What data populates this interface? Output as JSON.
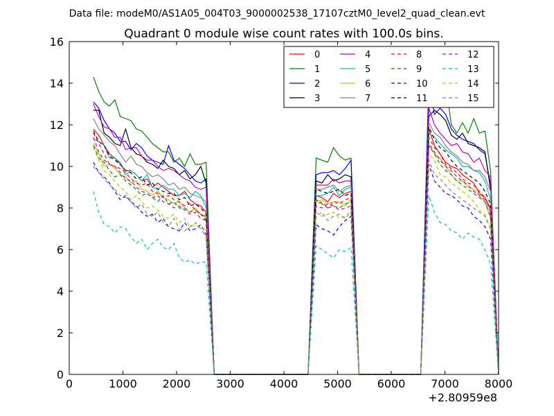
{
  "header": {
    "suptitle": "Data file: modeM0/AS1A05_004T03_9000002538_17107cztM0_level2_quad_clean.evt"
  },
  "chart_data": {
    "type": "line",
    "title": "Quadrant 0 module wise count rates with 100.0s bins.",
    "xlabel": "",
    "ylabel": "",
    "x_offset_label": "+2.80959e8",
    "xlim": [
      0,
      8000
    ],
    "ylim": [
      0,
      16
    ],
    "x_ticks": [
      0,
      1000,
      2000,
      3000,
      4000,
      5000,
      6000,
      7000,
      8000
    ],
    "y_ticks": [
      0,
      2,
      4,
      6,
      8,
      10,
      12,
      14,
      16
    ],
    "grid": false,
    "legend_position": "top-right",
    "legend_columns": 4,
    "segments": [
      {
        "x_start": 450,
        "x_end": 2550
      },
      {
        "x_start": 4600,
        "x_end": 5250
      },
      {
        "x_start": 6700,
        "x_end": 7850
      }
    ],
    "series": [
      {
        "name": "0",
        "color": "#ff0000",
        "dash": "solid",
        "values": [
          [
            11.8,
            11.5,
            11.0,
            10.6,
            10.4,
            10.1,
            9.8,
            9.8,
            9.6,
            9.3,
            9.4,
            9.0,
            9.2,
            9.0,
            8.8,
            8.6,
            8.6,
            8.8,
            8.4,
            8.2,
            8.1,
            7.8
          ],
          [
            8.6,
            8.5,
            8.3,
            8.7,
            8.5,
            8.7,
            8.8
          ],
          [
            11.8,
            11.0,
            10.6,
            10.2,
            10.0,
            9.9,
            9.6,
            9.4,
            9.2,
            8.7,
            8.5,
            8.0
          ]
        ]
      },
      {
        "name": "1",
        "color": "#008000",
        "dash": "solid",
        "values": [
          [
            14.3,
            13.6,
            13.1,
            12.9,
            13.2,
            12.4,
            12.3,
            12.2,
            11.8,
            11.7,
            11.4,
            11.1,
            10.9,
            10.7,
            10.7,
            10.2,
            10.4,
            10.0,
            10.6,
            10.1,
            10.1,
            10.2
          ],
          [
            10.4,
            10.3,
            10.2,
            10.9,
            10.5,
            10.3,
            10.4
          ],
          [
            14.2,
            13.7,
            13.9,
            14.0,
            12.0,
            11.6,
            12.1,
            11.6,
            12.3,
            11.6,
            11.7,
            9.8
          ]
        ]
      },
      {
        "name": "2",
        "color": "#0000ff",
        "dash": "solid",
        "values": [
          [
            13.1,
            12.8,
            12.2,
            11.8,
            11.6,
            11.2,
            11.2,
            10.8,
            11.1,
            10.9,
            10.5,
            10.3,
            10.2,
            10.1,
            11.0,
            10.3,
            10.1,
            9.9,
            9.6,
            9.3,
            9.2,
            9.4
          ],
          [
            9.6,
            9.7,
            9.7,
            9.8,
            9.6,
            9.9,
            10.3
          ],
          [
            13.9,
            12.5,
            12.8,
            12.5,
            11.8,
            11.5,
            11.3,
            11.2,
            11.1,
            10.8,
            10.6,
            9.1
          ]
        ]
      },
      {
        "name": "3",
        "color": "#000000",
        "dash": "solid",
        "values": [
          [
            12.7,
            12.7,
            11.6,
            11.4,
            11.1,
            11.0,
            11.8,
            10.9,
            10.6,
            10.5,
            10.2,
            10.1,
            9.9,
            10.3,
            10.0,
            9.9,
            9.6,
            9.8,
            9.4,
            9.6,
            10.0,
            9.2
          ],
          [
            9.3,
            9.2,
            9.6,
            9.3,
            9.4,
            9.6,
            9.5
          ],
          [
            12.4,
            12.7,
            12.5,
            12.2,
            11.5,
            11.3,
            11.6,
            11.1,
            11.0,
            10.9,
            10.7,
            8.9
          ]
        ]
      },
      {
        "name": "4",
        "color": "#bf00bf",
        "dash": "solid",
        "values": [
          [
            13.0,
            12.4,
            11.9,
            11.8,
            11.4,
            11.4,
            10.8,
            10.9,
            10.9,
            10.5,
            10.3,
            10.3,
            10.0,
            9.8,
            9.9,
            9.8,
            9.6,
            9.4,
            9.3,
            9.0,
            8.9,
            9.0
          ],
          [
            9.1,
            9.1,
            9.1,
            9.4,
            9.2,
            9.3,
            9.3
          ],
          [
            12.8,
            12.0,
            11.6,
            11.3,
            11.0,
            11.1,
            10.7,
            10.6,
            10.2,
            10.4,
            9.8,
            9.5
          ]
        ]
      },
      {
        "name": "5",
        "color": "#00bfbf",
        "dash": "solid",
        "values": [
          [
            11.3,
            11.2,
            11.0,
            10.4,
            10.4,
            10.2,
            9.6,
            9.8,
            9.6,
            9.3,
            9.6,
            9.0,
            8.9,
            9.1,
            8.9,
            8.9,
            8.6,
            8.7,
            8.5,
            8.8,
            8.6,
            8.0
          ],
          [
            8.6,
            8.6,
            8.7,
            9.0,
            8.6,
            8.9,
            9.0
          ],
          [
            11.6,
            11.4,
            11.1,
            10.8,
            10.6,
            10.4,
            10.0,
            10.0,
            9.8,
            9.7,
            9.3,
            8.4
          ]
        ]
      },
      {
        "name": "6",
        "color": "#bfbf00",
        "dash": "solid",
        "values": [
          [
            11.1,
            10.6,
            10.0,
            10.1,
            9.9,
            9.6,
            9.5,
            9.2,
            9.3,
            8.9,
            8.8,
            8.6,
            8.8,
            8.5,
            8.4,
            8.2,
            8.3,
            8.0,
            7.8,
            8.0,
            7.7,
            7.5
          ],
          [
            8.3,
            8.4,
            8.2,
            8.3,
            8.3,
            8.1,
            8.4
          ],
          [
            11.0,
            10.6,
            10.4,
            10.0,
            9.6,
            9.3,
            9.3,
            9.0,
            8.9,
            8.6,
            8.3,
            7.5
          ]
        ]
      },
      {
        "name": "7",
        "color": "#808080",
        "dash": "solid",
        "values": [
          [
            12.3,
            11.8,
            11.5,
            11.2,
            11.0,
            10.6,
            10.2,
            10.5,
            10.1,
            10.0,
            9.7,
            9.5,
            9.6,
            9.4,
            9.1,
            9.2,
            8.9,
            9.0,
            8.7,
            8.6,
            8.5,
            8.3
          ],
          [
            8.9,
            8.9,
            9.0,
            9.1,
            8.8,
            9.0,
            9.1
          ],
          [
            12.1,
            11.6,
            11.4,
            11.0,
            10.7,
            10.5,
            10.2,
            10.1,
            9.8,
            9.8,
            9.5,
            8.8
          ]
        ]
      },
      {
        "name": "8",
        "color": "#ff0000",
        "dash": "dashed",
        "values": [
          [
            11.6,
            11.1,
            10.6,
            10.1,
            10.0,
            9.9,
            9.7,
            9.4,
            9.2,
            9.1,
            9.2,
            8.8,
            8.7,
            8.5,
            8.6,
            8.4,
            8.3,
            8.1,
            8.2,
            7.9,
            7.7,
            7.6
          ],
          [
            8.4,
            8.2,
            8.0,
            8.3,
            8.2,
            8.4,
            8.5
          ],
          [
            11.4,
            10.9,
            10.6,
            10.1,
            9.9,
            9.7,
            9.4,
            9.2,
            9.1,
            8.8,
            8.5,
            7.9
          ]
        ]
      },
      {
        "name": "9",
        "color": "#008000",
        "dash": "dashed",
        "values": [
          [
            11.0,
            10.4,
            10.2,
            9.8,
            9.5,
            9.6,
            9.3,
            9.1,
            8.9,
            8.6,
            8.7,
            8.5,
            8.3,
            8.6,
            8.2,
            8.3,
            8.0,
            8.0,
            7.8,
            7.9,
            7.7,
            7.4
          ],
          [
            8.2,
            8.3,
            8.0,
            8.1,
            8.0,
            8.2,
            8.3
          ],
          [
            11.0,
            10.6,
            10.1,
            9.8,
            9.6,
            9.3,
            9.1,
            8.9,
            8.7,
            8.5,
            8.3,
            7.6
          ]
        ]
      },
      {
        "name": "10",
        "color": "#0000ff",
        "dash": "dashed",
        "values": [
          [
            10.2,
            9.7,
            9.5,
            9.2,
            8.8,
            8.4,
            8.6,
            8.3,
            8.1,
            7.8,
            7.6,
            7.7,
            7.3,
            7.5,
            7.1,
            7.0,
            6.9,
            7.3,
            6.9,
            7.0,
            7.2,
            6.7
          ],
          [
            7.2,
            7.0,
            6.9,
            6.7,
            7.1,
            7.4,
            7.6
          ],
          [
            10.1,
            9.3,
            9.0,
            8.7,
            8.6,
            8.4,
            8.1,
            8.0,
            7.6,
            7.4,
            7.1,
            6.5
          ]
        ]
      },
      {
        "name": "11",
        "color": "#000000",
        "dash": "dashed",
        "values": [
          [
            11.7,
            11.2,
            11.0,
            10.5,
            10.3,
            10.1,
            9.8,
            9.7,
            9.4,
            9.5,
            9.1,
            9.2,
            8.9,
            8.8,
            8.7,
            8.7,
            8.4,
            8.5,
            8.1,
            8.2,
            8.0,
            7.7
          ],
          [
            8.9,
            8.8,
            8.7,
            8.8,
            8.9,
            8.6,
            8.7
          ],
          [
            11.9,
            11.3,
            10.9,
            10.7,
            10.3,
            10.0,
            9.8,
            9.6,
            9.4,
            9.2,
            8.8,
            8.2
          ]
        ]
      },
      {
        "name": "12",
        "color": "#bf00bf",
        "dash": "dashed",
        "values": [
          [
            11.4,
            10.7,
            10.3,
            10.1,
            10.0,
            9.7,
            9.4,
            9.3,
            9.0,
            8.8,
            8.7,
            8.5,
            8.6,
            8.3,
            8.2,
            8.0,
            8.1,
            7.9,
            7.7,
            7.8,
            7.5,
            7.4
          ],
          [
            8.1,
            8.0,
            8.2,
            8.1,
            7.9,
            8.0,
            8.1
          ],
          [
            11.1,
            10.7,
            10.3,
            10.0,
            9.8,
            9.5,
            9.3,
            9.1,
            8.8,
            8.6,
            8.4,
            7.8
          ]
        ]
      },
      {
        "name": "13",
        "color": "#00bfbf",
        "dash": "dashed",
        "values": [
          [
            8.8,
            7.8,
            7.2,
            7.1,
            6.8,
            7.1,
            7.0,
            6.6,
            6.3,
            6.5,
            6.0,
            6.3,
            6.5,
            6.1,
            6.0,
            6.3,
            5.6,
            5.4,
            5.5,
            5.3,
            5.4,
            5.4
          ],
          [
            6.2,
            6.0,
            5.8,
            5.6,
            6.0,
            5.9,
            6.1
          ],
          [
            8.6,
            7.8,
            7.3,
            7.2,
            6.9,
            6.8,
            6.5,
            6.8,
            6.6,
            6.5,
            6.0,
            5.3
          ]
        ]
      },
      {
        "name": "14",
        "color": "#bfbf00",
        "dash": "dashed",
        "values": [
          [
            10.9,
            10.3,
            9.8,
            9.6,
            9.3,
            9.0,
            8.8,
            8.4,
            8.6,
            8.3,
            8.0,
            8.1,
            7.9,
            7.6,
            7.5,
            7.7,
            7.3,
            7.5,
            7.1,
            7.2,
            7.0,
            7.0
          ],
          [
            7.8,
            7.6,
            7.7,
            7.8,
            7.5,
            7.6,
            7.9
          ],
          [
            10.6,
            10.3,
            9.6,
            9.5,
            9.2,
            9.0,
            8.8,
            8.6,
            8.3,
            7.9,
            7.7,
            7.0
          ]
        ]
      },
      {
        "name": "15",
        "color": "#808080",
        "dash": "dashed",
        "values": [
          [
            10.0,
            9.7,
            9.4,
            9.1,
            8.9,
            8.6,
            8.5,
            8.3,
            8.0,
            8.2,
            7.7,
            7.6,
            7.8,
            7.3,
            7.1,
            7.5,
            7.0,
            6.9,
            7.1,
            7.3,
            7.0,
            6.6
          ],
          [
            7.6,
            7.8,
            7.4,
            7.6,
            7.7,
            7.5,
            7.8
          ],
          [
            10.3,
            9.6,
            9.4,
            9.1,
            8.8,
            8.6,
            8.4,
            8.2,
            8.0,
            7.8,
            7.6,
            7.0
          ]
        ]
      }
    ]
  }
}
